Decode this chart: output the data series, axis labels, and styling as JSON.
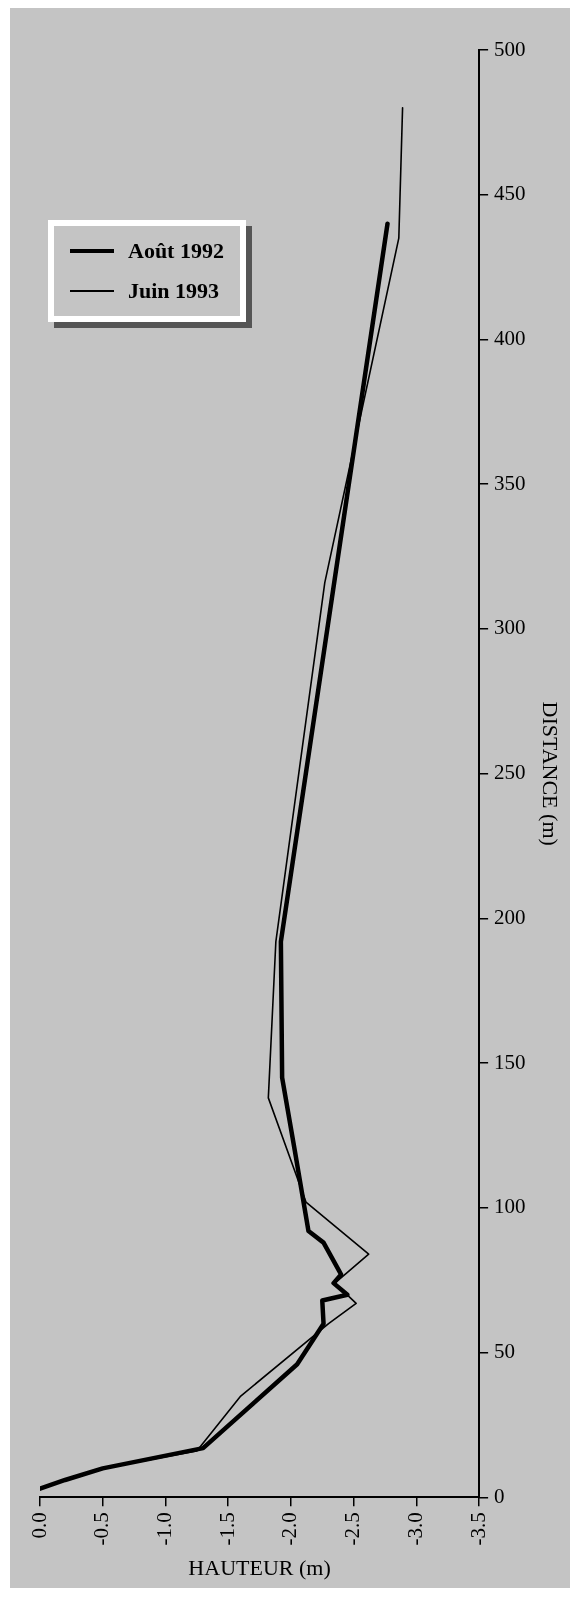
{
  "chart_data": {
    "type": "line",
    "xlabel": "HAUTEUR (m)",
    "ylabel": "DISTANCE (m)",
    "xlim": [
      0,
      -3.5
    ],
    "ylim": [
      0,
      500
    ],
    "yticks": [
      0,
      50,
      100,
      150,
      200,
      250,
      300,
      350,
      400,
      450,
      500
    ],
    "xticks": [
      {
        "value": 0,
        "label": "0.0"
      },
      {
        "value": -0.5,
        "label": "-0.5"
      },
      {
        "value": -1,
        "label": "-1.0"
      },
      {
        "value": -1.5,
        "label": "-1.5"
      },
      {
        "value": -2,
        "label": "-2.0"
      },
      {
        "value": -2.5,
        "label": "-2.5"
      },
      {
        "value": -3,
        "label": "-3.0"
      },
      {
        "value": -3.5,
        "label": "-3.5"
      }
    ],
    "grid": false,
    "legend": "left",
    "marker": "none",
    "line_style": "solid",
    "series": [
      {
        "name": "Août 1992",
        "color": "#000000",
        "x": [
          0,
          -0.2,
          -0.5,
          -1.3,
          -2.05,
          -2.26,
          -2.25,
          -2.45,
          -2.34,
          -2.4,
          -2.26,
          -2.14,
          -2.03,
          -1.93,
          -1.92,
          -2.77
        ],
        "values": [
          3,
          6,
          10,
          17,
          46,
          60,
          68,
          70,
          74,
          77,
          88,
          92,
          120,
          145,
          192,
          440
        ]
      },
      {
        "name": "Juin 1993",
        "color": "#000000",
        "x": [
          0,
          -0.2,
          -0.5,
          -1.25,
          -1.6,
          -2.3,
          -2.52,
          -2.35,
          -2.62,
          -2.12,
          -1.82,
          -1.88,
          -2.27,
          -2.86,
          -2.89
        ],
        "values": [
          3,
          6,
          10,
          16,
          35,
          60,
          67,
          74,
          84,
          102,
          138,
          192,
          316,
          435,
          480
        ]
      }
    ]
  }
}
